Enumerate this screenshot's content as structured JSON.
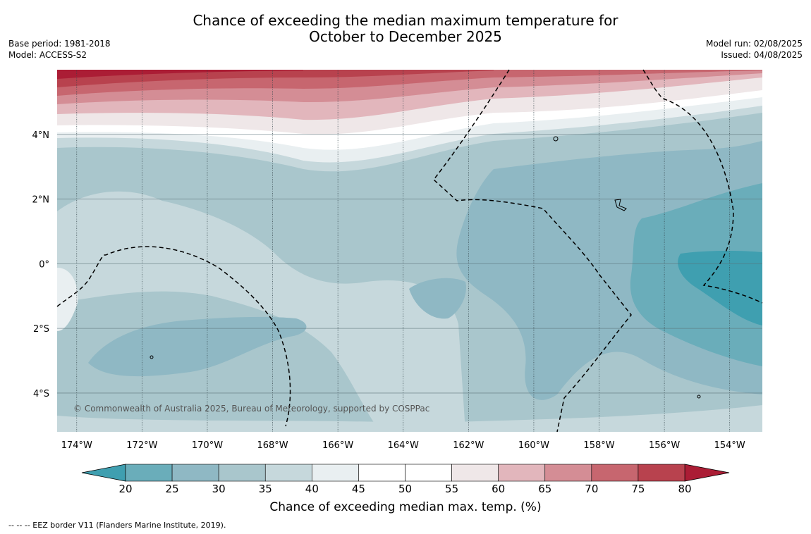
{
  "header": {
    "title_line1": "Chance of exceeding the median maximum temperature for",
    "title_line2": "October to December 2025",
    "base_period": "Base period: 1981-2018",
    "model": "Model: ACCESS-S2",
    "model_run": "Model run: 02/08/2025",
    "issued": "Issued: 04/08/2025"
  },
  "map": {
    "lon_range": [
      -174.6,
      -153.0
    ],
    "lat_range": [
      -5.2,
      6.0
    ],
    "lon_ticks": [
      -174,
      -172,
      -170,
      -168,
      -166,
      -164,
      -162,
      -160,
      -158,
      -156,
      -154
    ],
    "lon_tick_labels": [
      "174°W",
      "172°W",
      "170°W",
      "168°W",
      "166°W",
      "164°W",
      "162°W",
      "160°W",
      "158°W",
      "156°W",
      "154°W"
    ],
    "lat_ticks": [
      4,
      2,
      0,
      -2,
      -4
    ],
    "lat_tick_labels": [
      "4°N",
      "2°N",
      "0°",
      "2°S",
      "4°S"
    ],
    "gridlines": true,
    "copyright": "© Commonwealth of Australia 2025, Bureau of Meteorology, supported by COSPPac"
  },
  "colorbar": {
    "ticks": [
      20,
      25,
      30,
      35,
      40,
      45,
      50,
      55,
      60,
      65,
      70,
      75,
      80
    ],
    "colors": [
      "#3f9fb0",
      "#6aadba",
      "#8fb8c4",
      "#a9c6cc",
      "#c6d8dc",
      "#e9eff1",
      "#ffffff",
      "#ffffff",
      "#efe7e8",
      "#e2b6bc",
      "#d48d95",
      "#c7666f",
      "#b8424e",
      "#ab1d35"
    ],
    "label": "Chance of exceeding median max. temp. (%)"
  },
  "footnote": "--  --  -- EEZ border V11 (Flanders Marine Institute, 2019)."
}
